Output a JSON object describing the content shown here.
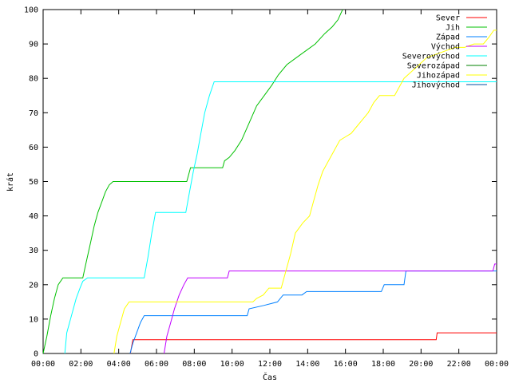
{
  "chart_data": {
    "type": "line",
    "xlabel": "Čas",
    "ylabel": "krát",
    "ylim": [
      0,
      100
    ],
    "xlim": [
      0,
      24
    ],
    "xtick_values": [
      0,
      2,
      4,
      6,
      8,
      10,
      12,
      14,
      16,
      18,
      20,
      22,
      24
    ],
    "xtick_labels": [
      "00:00",
      "02:00",
      "04:00",
      "06:00",
      "08:00",
      "10:00",
      "12:00",
      "14:00",
      "16:00",
      "18:00",
      "20:00",
      "22:00",
      "00:00"
    ],
    "ytick_values": [
      0,
      10,
      20,
      30,
      40,
      50,
      60,
      70,
      80,
      90,
      100
    ],
    "ytick_labels": [
      "0",
      "10",
      "20",
      "30",
      "40",
      "50",
      "60",
      "70",
      "80",
      "90",
      "100"
    ],
    "legend_position": "top-right",
    "grid": false,
    "series": [
      {
        "name": "Sever",
        "color": "#ff0000",
        "points": [
          [
            4.62,
            0
          ],
          [
            4.75,
            4
          ],
          [
            20.8,
            4
          ],
          [
            20.85,
            6
          ],
          [
            24,
            6
          ]
        ]
      },
      {
        "name": "Jih",
        "color": "#00c000",
        "points": [
          [
            0,
            0
          ],
          [
            0.2,
            5
          ],
          [
            0.4,
            11
          ],
          [
            0.6,
            16
          ],
          [
            0.8,
            20
          ],
          [
            1.05,
            22
          ],
          [
            2.1,
            22
          ],
          [
            2.3,
            27
          ],
          [
            2.5,
            32
          ],
          [
            2.7,
            37
          ],
          [
            2.9,
            41
          ],
          [
            3.1,
            44
          ],
          [
            3.3,
            47
          ],
          [
            3.5,
            49
          ],
          [
            3.7,
            50
          ],
          [
            7.6,
            50
          ],
          [
            7.65,
            51
          ],
          [
            7.8,
            54
          ],
          [
            9.5,
            54
          ],
          [
            9.6,
            56
          ],
          [
            9.85,
            57
          ],
          [
            10.15,
            59
          ],
          [
            10.5,
            62
          ],
          [
            10.9,
            67
          ],
          [
            11.3,
            72
          ],
          [
            11.7,
            75
          ],
          [
            12.1,
            78
          ],
          [
            12.45,
            81
          ],
          [
            12.9,
            84
          ],
          [
            13.4,
            86
          ],
          [
            13.9,
            88
          ],
          [
            14.4,
            90
          ],
          [
            14.9,
            93
          ],
          [
            15.3,
            95
          ],
          [
            15.6,
            97
          ],
          [
            15.85,
            100
          ]
        ]
      },
      {
        "name": "Západ",
        "color": "#0080ff",
        "points": [
          [
            4.6,
            0
          ],
          [
            4.75,
            3
          ],
          [
            4.95,
            6
          ],
          [
            5.15,
            9
          ],
          [
            5.35,
            11
          ],
          [
            10.8,
            11
          ],
          [
            10.9,
            13
          ],
          [
            11.7,
            14
          ],
          [
            12.4,
            15
          ],
          [
            12.7,
            17
          ],
          [
            13.7,
            17
          ],
          [
            13.95,
            18
          ],
          [
            17.9,
            18
          ],
          [
            18.05,
            20
          ],
          [
            19.1,
            20
          ],
          [
            19.2,
            24
          ],
          [
            24,
            24
          ]
        ]
      },
      {
        "name": "Východ",
        "color": "#c000ff",
        "points": [
          [
            6.4,
            0
          ],
          [
            6.55,
            5
          ],
          [
            6.75,
            9
          ],
          [
            6.95,
            13
          ],
          [
            7.2,
            17
          ],
          [
            7.45,
            20
          ],
          [
            7.65,
            22
          ],
          [
            9.75,
            22
          ],
          [
            9.85,
            24
          ],
          [
            23.8,
            24
          ],
          [
            23.9,
            26
          ],
          [
            24,
            26
          ]
        ]
      },
      {
        "name": "Severovýchod",
        "color": "#00ffff",
        "points": [
          [
            1.15,
            0
          ],
          [
            1.25,
            6
          ],
          [
            1.5,
            11
          ],
          [
            1.75,
            16
          ],
          [
            1.95,
            19
          ],
          [
            2.1,
            21
          ],
          [
            2.35,
            22
          ],
          [
            5.35,
            22
          ],
          [
            5.55,
            28
          ],
          [
            5.75,
            35
          ],
          [
            5.95,
            41
          ],
          [
            7.55,
            41
          ],
          [
            7.75,
            47
          ],
          [
            7.95,
            53
          ],
          [
            8.15,
            58
          ],
          [
            8.35,
            64
          ],
          [
            8.55,
            70
          ],
          [
            8.8,
            75
          ],
          [
            9.05,
            79
          ],
          [
            24,
            79
          ]
        ]
      },
      {
        "name": "Severozápad",
        "color": "#008000",
        "points": []
      },
      {
        "name": "Jihozápad",
        "color": "#ffff00",
        "points": [
          [
            3.75,
            0
          ],
          [
            3.9,
            5
          ],
          [
            4.1,
            9
          ],
          [
            4.3,
            13
          ],
          [
            4.55,
            15
          ],
          [
            11.1,
            15
          ],
          [
            11.3,
            16
          ],
          [
            11.65,
            17
          ],
          [
            11.95,
            19
          ],
          [
            12.6,
            19
          ],
          [
            12.8,
            23
          ],
          [
            13.1,
            29
          ],
          [
            13.35,
            35
          ],
          [
            13.75,
            38
          ],
          [
            14.1,
            40
          ],
          [
            14.3,
            44
          ],
          [
            14.55,
            49
          ],
          [
            14.8,
            53
          ],
          [
            15.1,
            56
          ],
          [
            15.4,
            59
          ],
          [
            15.7,
            62
          ],
          [
            16.0,
            63
          ],
          [
            16.3,
            64
          ],
          [
            16.6,
            66
          ],
          [
            16.9,
            68
          ],
          [
            17.2,
            70
          ],
          [
            17.5,
            73
          ],
          [
            17.8,
            75
          ],
          [
            18.6,
            75
          ],
          [
            18.8,
            77
          ],
          [
            19.1,
            80
          ],
          [
            19.5,
            82
          ],
          [
            19.9,
            84
          ],
          [
            20.3,
            86
          ],
          [
            20.8,
            87
          ],
          [
            21.3,
            88
          ],
          [
            21.8,
            89
          ],
          [
            22.3,
            89
          ],
          [
            22.8,
            90
          ],
          [
            23.3,
            90
          ],
          [
            23.6,
            92
          ],
          [
            23.85,
            94
          ],
          [
            24,
            94
          ]
        ]
      },
      {
        "name": "Jihovýchod",
        "color": "#0050a0",
        "points": []
      }
    ]
  }
}
